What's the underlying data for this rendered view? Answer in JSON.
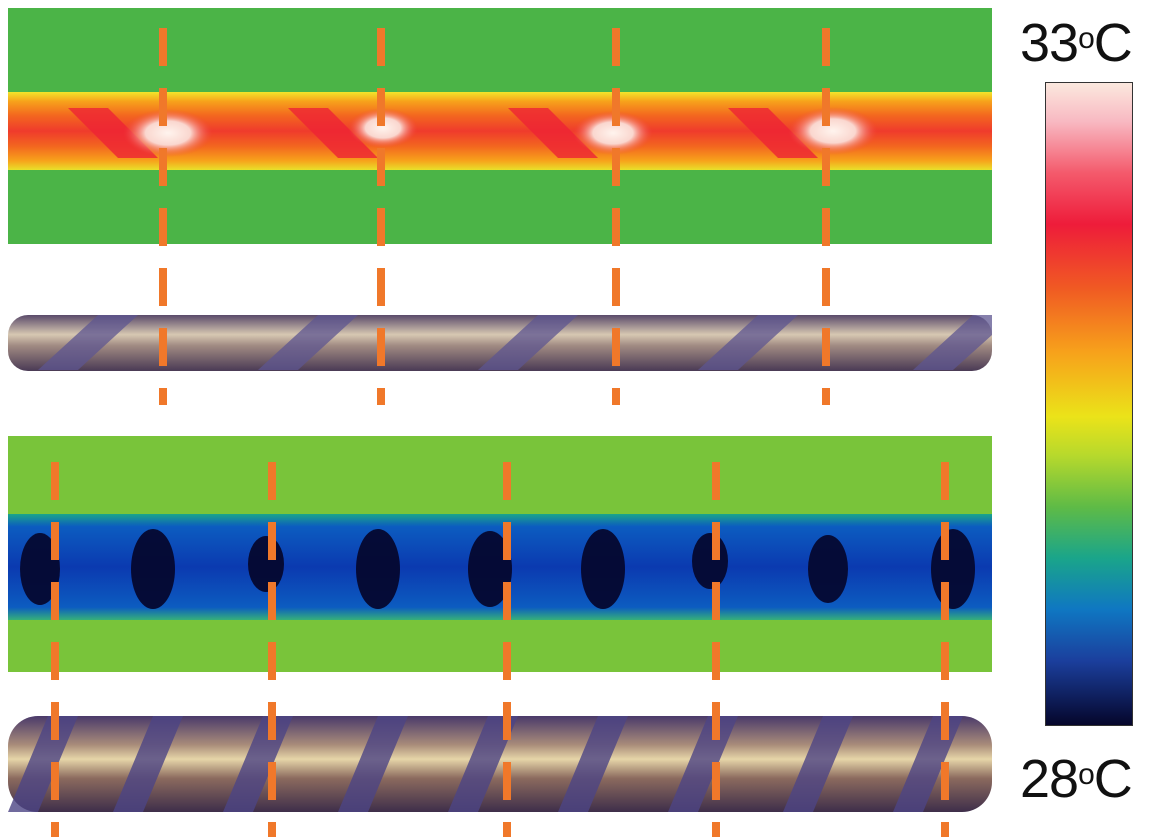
{
  "scale": {
    "max_value": "33",
    "min_value": "28",
    "degree_symbol": "o",
    "unit_letter": "C",
    "colors": [
      "#fbe8de",
      "#f8b9c2",
      "#f45a6c",
      "#ee1c3a",
      "#f05a23",
      "#f7a21b",
      "#ebe319",
      "#b7d92c",
      "#5fbb46",
      "#1aa58a",
      "#0f77c2",
      "#1b3f9d",
      "#05062b"
    ]
  },
  "thermal_top": {
    "background": "#4bb447",
    "band_colors": [
      "#f2e52a",
      "#f3671f",
      "#ef3b2c",
      "#fbe6dc"
    ]
  },
  "thermal_bottom": {
    "background": "#79c43a",
    "band_colors": [
      "#0c5cc0",
      "#0a2aa0",
      "#050830"
    ]
  },
  "guide_color": "#f0782a"
}
